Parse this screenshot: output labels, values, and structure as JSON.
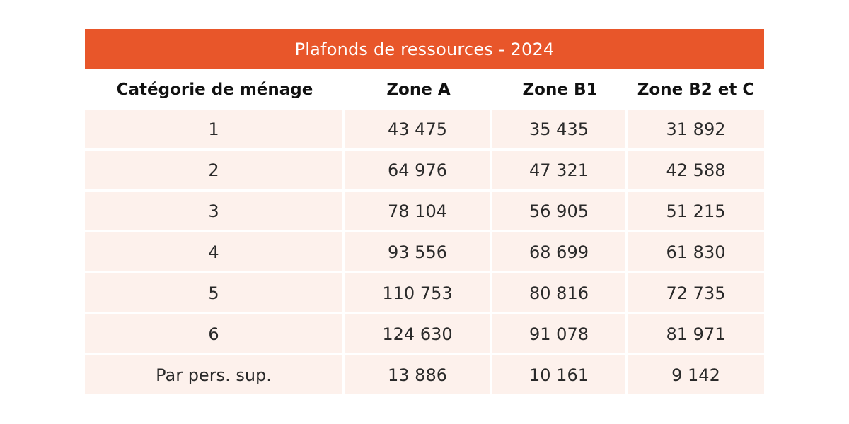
{
  "table": {
    "title": "Plafonds de ressources - 2024",
    "columns": [
      "Catégorie de ménage",
      "Zone A",
      "Zone B1",
      "Zone B2 et C"
    ],
    "rows": [
      [
        "1",
        "43 475",
        "35 435",
        "31 892"
      ],
      [
        "2",
        "64 976",
        "47 321",
        "42 588"
      ],
      [
        "3",
        "78 104",
        "56 905",
        "51 215"
      ],
      [
        "4",
        "93 556",
        "68 699",
        "61 830"
      ],
      [
        "5",
        "110 753",
        "80 816",
        "72 735"
      ],
      [
        "6",
        "124 630",
        "91 078",
        "81 971"
      ],
      [
        "Par pers. sup.",
        "13 886",
        "10 161",
        "9 142"
      ]
    ],
    "colors": {
      "header_background": "#e8562a",
      "row_background": "#fdf1ec"
    }
  }
}
